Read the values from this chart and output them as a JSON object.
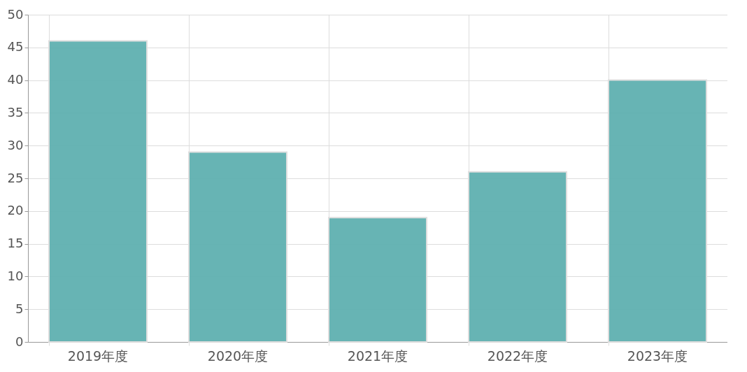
{
  "chart_data": {
    "type": "bar",
    "categories": [
      "2019年度",
      "2020年度",
      "2021年度",
      "2022年度",
      "2023年度"
    ],
    "values": [
      46,
      29,
      19,
      26,
      40
    ],
    "color": "#5fb0b0",
    "ylim": [
      0,
      50
    ],
    "yticks": [
      0,
      5,
      10,
      15,
      20,
      25,
      30,
      35,
      40,
      45,
      50
    ],
    "grid": true
  }
}
